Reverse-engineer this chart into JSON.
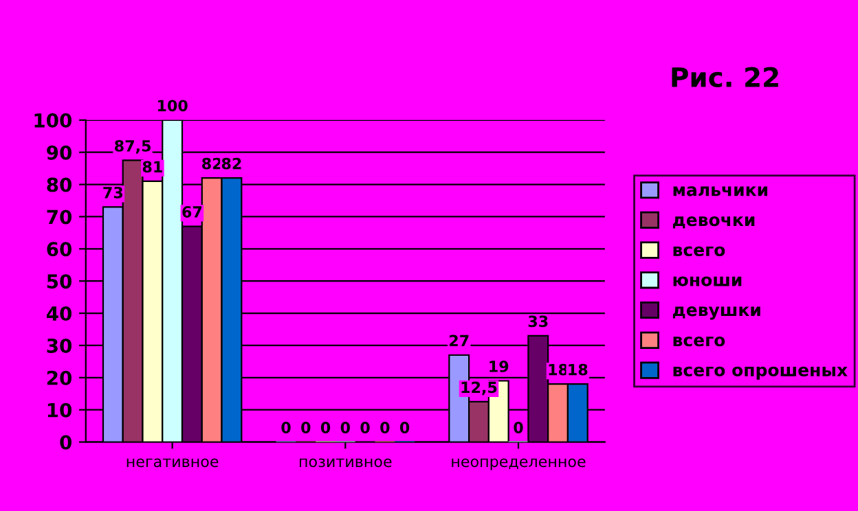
{
  "chart_data": {
    "type": "bar",
    "title": "Рис. 22",
    "categories": [
      "негативное",
      "позитивное",
      "неопределенное"
    ],
    "series": [
      {
        "name": "мальчики",
        "color": "#9999ff",
        "values": [
          73,
          0,
          27
        ],
        "value_labels": [
          "73",
          "0",
          "27"
        ]
      },
      {
        "name": "девочки",
        "color": "#993366",
        "values": [
          87.5,
          0,
          12.5
        ],
        "value_labels": [
          "87,5",
          "0",
          "12,5"
        ]
      },
      {
        "name": "всего",
        "color": "#ffffcc",
        "values": [
          81,
          0,
          19
        ],
        "value_labels": [
          "81",
          "0",
          "19"
        ]
      },
      {
        "name": "юноши",
        "color": "#ccffff",
        "values": [
          100,
          0,
          0
        ],
        "value_labels": [
          "100",
          "0",
          "0"
        ]
      },
      {
        "name": "девушки",
        "color": "#660066",
        "values": [
          67,
          0,
          33
        ],
        "value_labels": [
          "67",
          "0",
          "33"
        ]
      },
      {
        "name": "всего",
        "color": "#ff8080",
        "values": [
          82,
          0,
          18
        ],
        "value_labels": [
          "82",
          "0",
          "18"
        ]
      },
      {
        "name": "всего опрошеных",
        "color": "#0066cc",
        "values": [
          82,
          0,
          18
        ],
        "value_labels": [
          "82",
          "0",
          "18"
        ]
      }
    ],
    "ylim": [
      0,
      100
    ],
    "yticks": [
      0,
      10,
      20,
      30,
      40,
      50,
      60,
      70,
      80,
      90,
      100
    ],
    "grid": "y",
    "legend": "right"
  }
}
